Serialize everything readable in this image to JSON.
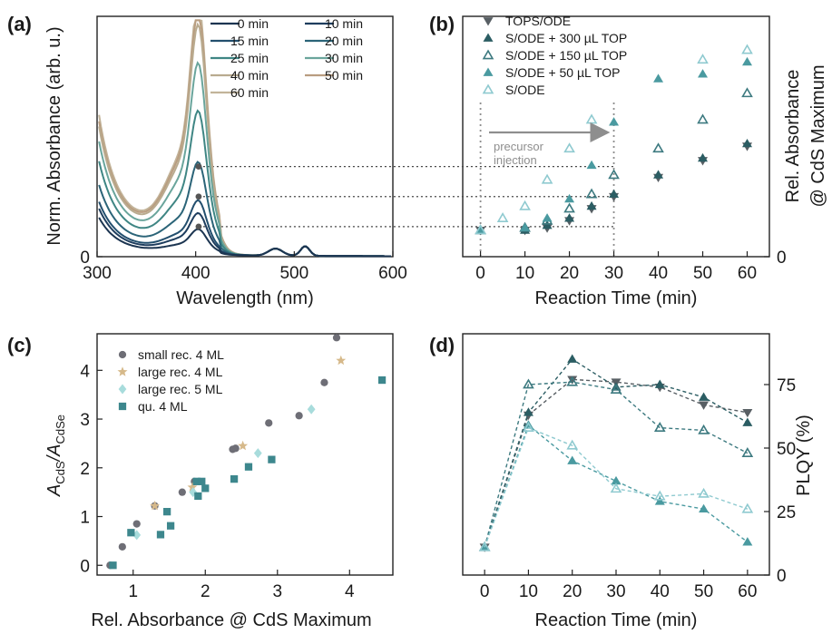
{
  "colors": {
    "0 min": "#1c3551",
    "10 min": "#1e3d5e",
    "15 min": "#234f6e",
    "20 min": "#2b6478",
    "25 min": "#3f8684",
    "30 min": "#6aa59c",
    "40 min": "#b9ab8f",
    "50 min": "#b99d80",
    "60 min": "#c2b49a",
    "TOPS/ODE": "#585f64",
    "S/ODE + 300 µL TOP": "#2b5d63",
    "S/ODE + 150 µL TOP": "#3d7a80",
    "S/ODE + 50 µL TOP": "#4a9aa0",
    "S/ODE": "#8fcad0",
    "small rec. 4 ML": "#6e6e76",
    "large rec. 4 ML": "#d6b98a",
    "large rec. 5 ML": "#a8dcdc",
    "qu. 4 ML": "#3d878d",
    "arrow": "#8e8e8e",
    "guide": "#444444"
  },
  "chart_data": [
    {
      "panel": "(a)",
      "type": "line",
      "xlabel": "Wavelength (nm)",
      "ylabel": "Norm. Absorbance (arb. u.)",
      "xlim": [
        300,
        600
      ],
      "ylim": [
        0,
        1.2
      ],
      "x_ticks": [
        "300",
        "400",
        "500",
        "600"
      ],
      "y_ticks": [
        "0"
      ],
      "legend_placement": "top-right",
      "series": [
        {
          "name": "0 min",
          "cds_peak": 0.08,
          "rise": 0.18
        },
        {
          "name": "10 min",
          "cds_peak": 0.13,
          "rise": 0.22
        },
        {
          "name": "15 min",
          "cds_peak": 0.17,
          "rise": 0.25
        },
        {
          "name": "20 min",
          "cds_peak": 0.29,
          "rise": 0.32
        },
        {
          "name": "25 min",
          "cds_peak": 0.45,
          "rise": 0.42
        },
        {
          "name": "30 min",
          "cds_peak": 0.6,
          "rise": 0.5
        },
        {
          "name": "40 min",
          "cds_peak": 0.72,
          "rise": 0.56
        },
        {
          "name": "50 min",
          "cds_peak": 0.76,
          "rise": 0.58
        },
        {
          "name": "60 min",
          "cds_peak": 0.79,
          "rise": 0.61
        }
      ],
      "markers": [
        {
          "x": 403,
          "y": 0.15
        },
        {
          "x": 403,
          "y": 0.3
        },
        {
          "x": 403,
          "y": 0.45
        }
      ]
    },
    {
      "panel": "(b)",
      "type": "scatter",
      "xlabel": "Reaction Time (min)",
      "ylabel": [
        "Rel. Absorbance",
        "@ CdS Maximum"
      ],
      "xlim": [
        -4,
        65
      ],
      "ylim": [
        0,
        1
      ],
      "x_ticks": [
        "0",
        "10",
        "20",
        "30",
        "40",
        "50",
        "60"
      ],
      "y_ticks": [
        "0"
      ],
      "legend_placement": "top-left",
      "annotation": [
        "precursor",
        "injection"
      ],
      "series": [
        {
          "name": "TOPS/ODE",
          "marker": "triangle-down",
          "x": [
            0,
            10,
            15,
            20,
            25,
            30,
            40,
            50,
            60
          ],
          "y": [
            0.11,
            0.11,
            0.12,
            0.15,
            0.2,
            0.25,
            0.33,
            0.4,
            0.46
          ]
        },
        {
          "name": "S/ODE + 300 µL TOP",
          "marker": "triangle-filled",
          "x": [
            0,
            10,
            15,
            20,
            25,
            30,
            40,
            50,
            60
          ],
          "y": [
            0.11,
            0.11,
            0.13,
            0.16,
            0.21,
            0.26,
            0.34,
            0.41,
            0.47
          ]
        },
        {
          "name": "S/ODE + 150 µL TOP",
          "marker": "triangle-open",
          "x": [
            0,
            10,
            15,
            20,
            25,
            30,
            40,
            50,
            60
          ],
          "y": [
            0.11,
            0.12,
            0.15,
            0.2,
            0.26,
            0.34,
            0.45,
            0.57,
            0.68
          ]
        },
        {
          "name": "S/ODE + 50 µL TOP",
          "marker": "triangle-filled",
          "x": [
            0,
            10,
            15,
            20,
            25,
            30,
            40,
            50,
            60
          ],
          "y": [
            0.11,
            0.12,
            0.16,
            0.24,
            0.38,
            0.56,
            0.74,
            0.76,
            0.81
          ]
        },
        {
          "name": "S/ODE",
          "marker": "triangle-open",
          "x": [
            0,
            5,
            10,
            15,
            20,
            25,
            50,
            60
          ],
          "y": [
            0.11,
            0.16,
            0.21,
            0.32,
            0.45,
            0.57,
            0.82,
            0.86
          ]
        }
      ]
    },
    {
      "panel": "(c)",
      "type": "scatter",
      "xlabel": "Rel. Absorbance @ CdS Maximum",
      "ylabel": "A_CdS/A_CdSe",
      "ylabel_parts": [
        "A",
        "CdS",
        "/A",
        "CdSe"
      ],
      "xlim": [
        0.5,
        4.6
      ],
      "ylim": [
        -0.2,
        4.75
      ],
      "x_ticks": [
        "1",
        "2",
        "3",
        "4"
      ],
      "y_ticks": [
        "0",
        "1",
        "2",
        "3",
        "4"
      ],
      "legend_placement": "top-left",
      "series": [
        {
          "name": "small rec. 4 ML",
          "marker": "circle",
          "x": [
            0.68,
            0.85,
            1.05,
            1.3,
            1.68,
            1.85,
            2.38,
            2.42,
            2.88,
            3.3,
            3.65,
            3.82
          ],
          "y": [
            0.0,
            0.38,
            0.85,
            1.22,
            1.5,
            1.72,
            2.38,
            2.4,
            2.92,
            3.07,
            3.75,
            4.67
          ]
        },
        {
          "name": "large rec. 4 ML",
          "marker": "star",
          "x": [
            1.3,
            1.82,
            2.52,
            3.88
          ],
          "y": [
            1.22,
            1.6,
            2.45,
            4.2
          ]
        },
        {
          "name": "large rec. 5 ML",
          "marker": "diamond",
          "x": [
            1.05,
            1.83,
            2.73,
            3.47
          ],
          "y": [
            0.62,
            1.5,
            2.3,
            3.2
          ]
        },
        {
          "name": "qu. 4 ML",
          "marker": "square",
          "x": [
            0.72,
            0.97,
            1.38,
            1.47,
            1.52,
            1.88,
            1.9,
            1.95,
            2.0,
            2.4,
            2.6,
            2.92,
            4.45
          ],
          "y": [
            0.0,
            0.67,
            0.63,
            1.1,
            0.81,
            1.72,
            1.42,
            1.72,
            1.58,
            1.77,
            2.02,
            2.17,
            3.8
          ]
        }
      ]
    },
    {
      "panel": "(d)",
      "type": "line",
      "xlabel": "Reaction Time (min)",
      "ylabel": "PLQY (%)",
      "xlim": [
        -5,
        65
      ],
      "ylim": [
        0,
        95
      ],
      "x_ticks": [
        "0",
        "10",
        "20",
        "30",
        "40",
        "50",
        "60"
      ],
      "y_ticks": [
        "0",
        "25",
        "50",
        "75"
      ],
      "series": [
        {
          "name": "TOPS/ODE",
          "marker": "triangle-down",
          "x": [
            0,
            10,
            20,
            30,
            40,
            50,
            60
          ],
          "y": [
            11,
            63,
            77,
            76,
            74,
            67,
            64
          ]
        },
        {
          "name": "S/ODE + 300 µL TOP",
          "marker": "triangle-filled",
          "x": [
            0,
            10,
            20,
            30,
            40,
            50,
            60
          ],
          "y": [
            11,
            64,
            85,
            74,
            75,
            70,
            60
          ]
        },
        {
          "name": "S/ODE + 150 µL TOP",
          "marker": "triangle-open",
          "x": [
            0,
            10,
            20,
            30,
            40,
            50,
            60
          ],
          "y": [
            11,
            75,
            76,
            73,
            58,
            57,
            48
          ]
        },
        {
          "name": "S/ODE + 50 µL TOP",
          "marker": "triangle-filled",
          "x": [
            0,
            10,
            20,
            30,
            40,
            50,
            60
          ],
          "y": [
            11,
            59,
            45,
            37,
            29,
            26,
            13
          ]
        },
        {
          "name": "S/ODE",
          "marker": "triangle-open",
          "x": [
            0,
            10,
            20,
            30,
            40,
            50,
            60
          ],
          "y": [
            11,
            58,
            51,
            34,
            31,
            32,
            26
          ]
        }
      ]
    }
  ]
}
